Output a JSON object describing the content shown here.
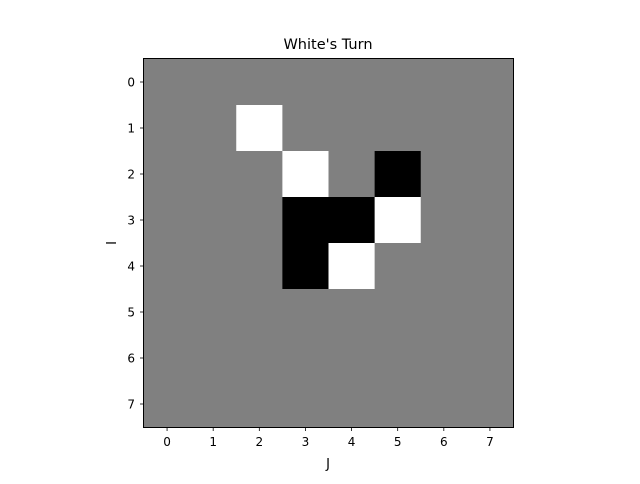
{
  "title": "White's Turn",
  "xlabel": "J",
  "ylabel": "I",
  "colors": {
    "empty": "#808080",
    "white": "#ffffff",
    "black": "#000000",
    "frame": "#000000"
  },
  "board": {
    "rows": 8,
    "cols": 8,
    "col_ticks": [
      "0",
      "1",
      "2",
      "3",
      "4",
      "5",
      "6",
      "7"
    ],
    "row_ticks": [
      "0",
      "1",
      "2",
      "3",
      "4",
      "5",
      "6",
      "7"
    ],
    "cells": [
      [
        0,
        0,
        0,
        0,
        0,
        0,
        0,
        0
      ],
      [
        0,
        0,
        1,
        0,
        0,
        0,
        0,
        0
      ],
      [
        0,
        0,
        0,
        1,
        0,
        -1,
        0,
        0
      ],
      [
        0,
        0,
        0,
        -1,
        -1,
        1,
        0,
        0
      ],
      [
        0,
        0,
        0,
        -1,
        1,
        0,
        0,
        0
      ],
      [
        0,
        0,
        0,
        0,
        0,
        0,
        0,
        0
      ],
      [
        0,
        0,
        0,
        0,
        0,
        0,
        0,
        0
      ],
      [
        0,
        0,
        0,
        0,
        0,
        0,
        0,
        0
      ]
    ]
  }
}
